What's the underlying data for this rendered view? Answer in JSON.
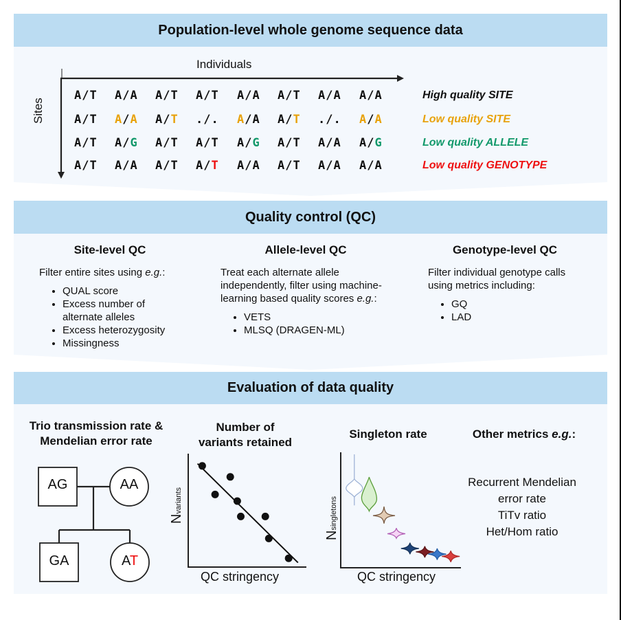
{
  "colors": {
    "header_band": "#bbdcf2",
    "panel_body": "#f4f8fd",
    "high_quality": "#111111",
    "low_site": "#e8a20c",
    "low_allele": "#13996b",
    "low_genotype": "#ee1111"
  },
  "panel1": {
    "title": "Population-level whole genome sequence data",
    "x_axis_label": "Individuals",
    "y_axis_label": "Sites",
    "rows": [
      {
        "label": "High quality SITE",
        "status": "high_quality",
        "genotypes": [
          {
            "a": "A",
            "sep": "/",
            "b": "T",
            "hl": ""
          },
          {
            "a": "A",
            "sep": "/",
            "b": "A",
            "hl": ""
          },
          {
            "a": "A",
            "sep": "/",
            "b": "T",
            "hl": ""
          },
          {
            "a": "A",
            "sep": "/",
            "b": "T",
            "hl": ""
          },
          {
            "a": "A",
            "sep": "/",
            "b": "A",
            "hl": ""
          },
          {
            "a": "A",
            "sep": "/",
            "b": "T",
            "hl": ""
          },
          {
            "a": "A",
            "sep": "/",
            "b": "A",
            "hl": ""
          },
          {
            "a": "A",
            "sep": "/",
            "b": "A",
            "hl": ""
          }
        ]
      },
      {
        "label": "Low quality SITE",
        "status": "low_site",
        "genotypes": [
          {
            "a": "A",
            "sep": "/",
            "b": "T",
            "hl": ""
          },
          {
            "a": "A",
            "sep": "/",
            "b": "A",
            "hl": "ab"
          },
          {
            "a": "A",
            "sep": "/",
            "b": "T",
            "hl": "b"
          },
          {
            "a": ".",
            "sep": "/",
            "b": ".",
            "hl": ""
          },
          {
            "a": "A",
            "sep": "/",
            "b": "A",
            "hl": "a"
          },
          {
            "a": "A",
            "sep": "/",
            "b": "T",
            "hl": "b"
          },
          {
            "a": ".",
            "sep": "/",
            "b": ".",
            "hl": ""
          },
          {
            "a": "A",
            "sep": "/",
            "b": "A",
            "hl": "ab"
          }
        ]
      },
      {
        "label": "Low quality ALLELE",
        "status": "low_allele",
        "genotypes": [
          {
            "a": "A",
            "sep": "/",
            "b": "T",
            "hl": ""
          },
          {
            "a": "A",
            "sep": "/",
            "b": "G",
            "hl": "b"
          },
          {
            "a": "A",
            "sep": "/",
            "b": "T",
            "hl": ""
          },
          {
            "a": "A",
            "sep": "/",
            "b": "T",
            "hl": ""
          },
          {
            "a": "A",
            "sep": "/",
            "b": "G",
            "hl": "b"
          },
          {
            "a": "A",
            "sep": "/",
            "b": "T",
            "hl": ""
          },
          {
            "a": "A",
            "sep": "/",
            "b": "A",
            "hl": ""
          },
          {
            "a": "A",
            "sep": "/",
            "b": "G",
            "hl": "b"
          }
        ]
      },
      {
        "label": "Low quality GENOTYPE",
        "status": "low_genotype",
        "genotypes": [
          {
            "a": "A",
            "sep": "/",
            "b": "T",
            "hl": ""
          },
          {
            "a": "A",
            "sep": "/",
            "b": "A",
            "hl": ""
          },
          {
            "a": "A",
            "sep": "/",
            "b": "T",
            "hl": ""
          },
          {
            "a": "A",
            "sep": "/",
            "b": "T",
            "hl": "b"
          },
          {
            "a": "A",
            "sep": "/",
            "b": "A",
            "hl": ""
          },
          {
            "a": "A",
            "sep": "/",
            "b": "T",
            "hl": ""
          },
          {
            "a": "A",
            "sep": "/",
            "b": "A",
            "hl": ""
          },
          {
            "a": "A",
            "sep": "/",
            "b": "A",
            "hl": ""
          }
        ]
      }
    ]
  },
  "panel2": {
    "title": "Quality control (QC)",
    "columns": [
      {
        "title": "Site-level QC",
        "intro": "Filter entire sites using ",
        "intro_em": "e.g.",
        "intro_end": ":",
        "items": [
          "QUAL score",
          "Excess number of alternate alleles",
          "Excess heterozygosity",
          "Missingness"
        ]
      },
      {
        "title": "Allele-level QC",
        "intro": "Treat each alternate allele independently, filter using machine-learning based quality scores ",
        "intro_em": "e.g.",
        "intro_end": ":",
        "items": [
          "VETS",
          "MLSQ (DRAGEN-ML)"
        ]
      },
      {
        "title": "Genotype-level QC",
        "intro": "Filter individual genotype calls using metrics including:",
        "intro_em": "",
        "intro_end": "",
        "items": [
          "GQ",
          "LAD"
        ]
      }
    ]
  },
  "panel3": {
    "title": "Evaluation of data quality",
    "trio": {
      "title_line1": "Trio transmission rate &",
      "title_line2": "Mendelian error rate",
      "father": "AG",
      "mother": "AA",
      "son": "GA",
      "daughter_a": "A",
      "daughter_b": "T"
    },
    "variants": {
      "title_line1": "Number of",
      "title_line2": "variants retained",
      "y_main": "N",
      "y_sub": "variants",
      "x_label": "QC stringency"
    },
    "singleton": {
      "title": "Singleton rate",
      "y_main": "N",
      "y_sub": "singletons",
      "x_label": "QC stringency"
    },
    "other": {
      "title": "Other metrics ",
      "title_em": "e.g.",
      "title_end": ":",
      "lines": [
        "Recurrent Mendelian",
        "error rate",
        "TiTv ratio",
        "Het/Hom ratio"
      ]
    }
  },
  "chart_data": [
    {
      "type": "scatter",
      "title": "Number of variants retained",
      "xlabel": "QC stringency",
      "ylabel": "N_variants",
      "xlim": [
        0,
        10
      ],
      "ylim": [
        0,
        10
      ],
      "points": [
        {
          "x": 1.2,
          "y": 9.2
        },
        {
          "x": 2.3,
          "y": 6.6
        },
        {
          "x": 3.6,
          "y": 8.2
        },
        {
          "x": 4.2,
          "y": 6.0
        },
        {
          "x": 4.5,
          "y": 4.6
        },
        {
          "x": 6.6,
          "y": 4.6
        },
        {
          "x": 6.9,
          "y": 2.6
        },
        {
          "x": 8.6,
          "y": 0.8
        }
      ],
      "trendline": {
        "x": [
          0.8,
          9.4
        ],
        "y": [
          9.4,
          0.4
        ]
      }
    },
    {
      "type": "violin",
      "title": "Singleton rate",
      "xlabel": "QC stringency",
      "ylabel": "N_singletons",
      "xlim": [
        0,
        10
      ],
      "ylim": [
        0,
        10
      ],
      "violins": [
        {
          "x": 1.1,
          "center": 7.0,
          "min": 5.5,
          "max": 10.0,
          "fill": "#ffffff",
          "stroke": "#9fb3d6"
        },
        {
          "x": 2.3,
          "center": 6.3,
          "min": 5.0,
          "max": 8.0,
          "fill": "#d9f0cf",
          "stroke": "#5a9e3a"
        },
        {
          "x": 3.5,
          "center": 4.6,
          "min": 3.9,
          "max": 5.4,
          "fill": "#e2cbb3",
          "stroke": "#7a5c44"
        },
        {
          "x": 4.5,
          "center": 3.0,
          "min": 2.6,
          "max": 3.5,
          "fill": "#f6d5f5",
          "stroke": "#b25fb5"
        },
        {
          "x": 5.6,
          "center": 1.7,
          "min": 1.2,
          "max": 2.2,
          "fill": "#1f4479",
          "stroke": "#163258"
        },
        {
          "x": 6.8,
          "center": 1.4,
          "min": 0.9,
          "max": 1.9,
          "fill": "#7c1e22",
          "stroke": "#5a1417"
        },
        {
          "x": 7.8,
          "center": 1.2,
          "min": 0.7,
          "max": 1.7,
          "fill": "#3a78c9",
          "stroke": "#245da6"
        },
        {
          "x": 8.9,
          "center": 1.0,
          "min": 0.5,
          "max": 1.5,
          "fill": "#d9403e",
          "stroke": "#b02a29"
        }
      ]
    }
  ]
}
